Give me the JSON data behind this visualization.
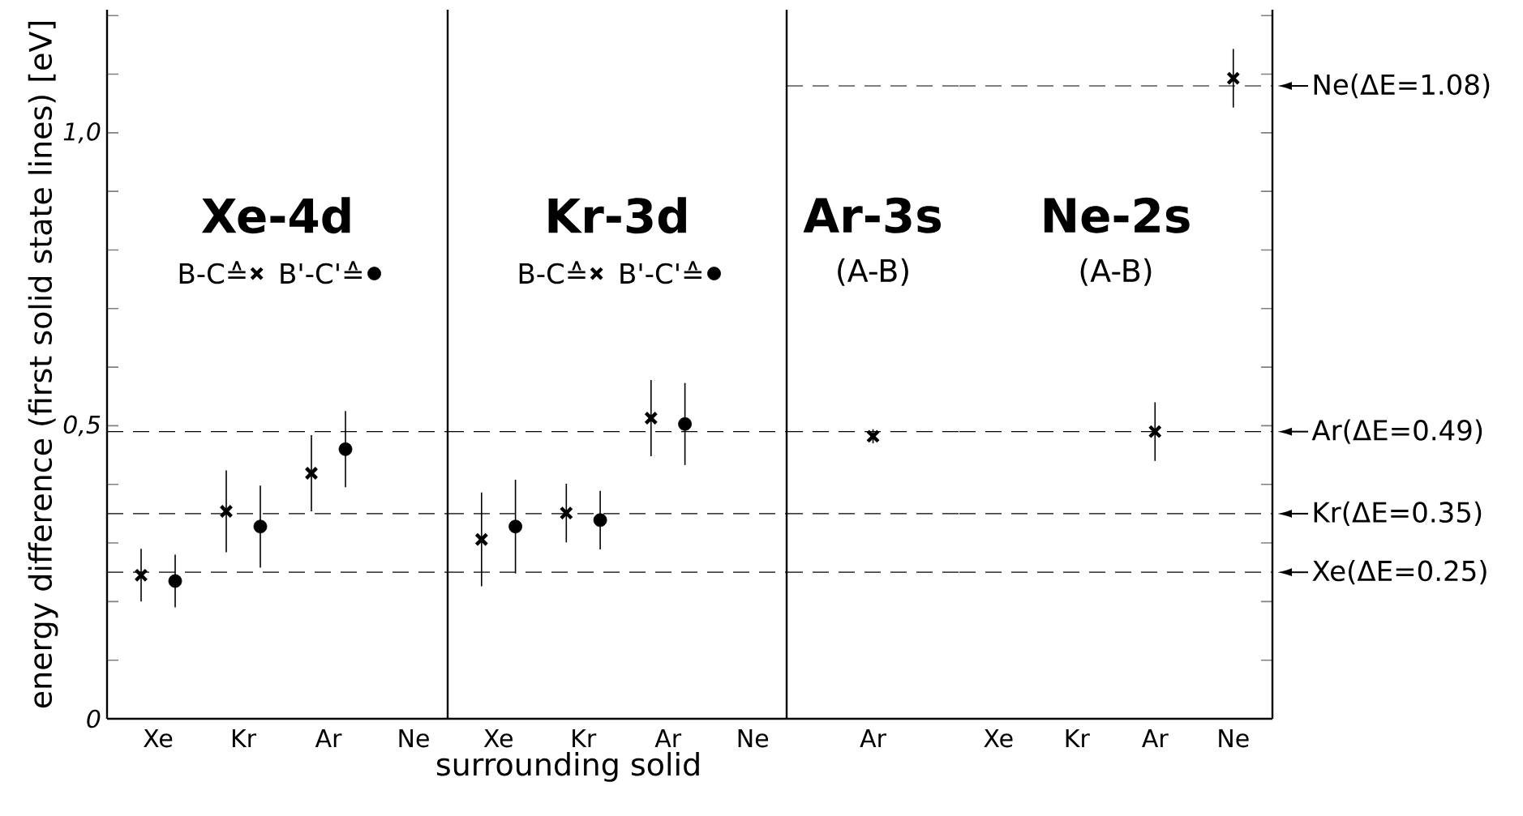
{
  "chart_data": [
    {
      "type": "scatter",
      "title": "Xe-4d",
      "ylabel": "energy difference (first solid state lines) [eV]",
      "categories": [
        "Xe",
        "Kr",
        "Ar",
        "Ne"
      ],
      "ylim": [
        0,
        1.21
      ],
      "yticks": [
        0,
        {
          "value": 0.1,
          "label": null
        },
        {
          "value": 0.2,
          "label": null
        },
        {
          "value": 0.3,
          "label": null
        },
        {
          "value": 0.4,
          "label": null
        },
        {
          "value": 0.5,
          "label": "0,5"
        },
        {
          "value": 0.6,
          "label": null
        },
        {
          "value": 0.7,
          "label": null
        },
        {
          "value": 0.8,
          "label": null
        },
        {
          "value": 0.9,
          "label": null
        },
        {
          "value": 1.0,
          "label": "1,0"
        },
        {
          "value": 1.1,
          "label": null
        },
        {
          "value": 1.2,
          "label": null
        }
      ],
      "legend": "top",
      "series": [
        {
          "name": "B-C≙",
          "color": "#000000",
          "marker": "cross",
          "values": [
            0.245,
            0.354,
            0.419,
            null
          ],
          "errors": [
            0.045,
            0.07,
            0.065,
            null
          ]
        },
        {
          "name": "B'-C'≙",
          "color": "#000000",
          "marker": "circle",
          "values": [
            0.235,
            0.328,
            0.46,
            null
          ],
          "errors": [
            0.045,
            0.07,
            0.065,
            null
          ]
        }
      ],
      "ref_lines": [
        {
          "axis": "y",
          "value": 0.25,
          "line_style": "dashed"
        },
        {
          "axis": "y",
          "value": 0.35,
          "line_style": "dashed"
        },
        {
          "axis": "y",
          "value": 0.49,
          "line_style": "dashed"
        }
      ]
    },
    {
      "type": "scatter",
      "title": "Kr-3d",
      "xlabel": "surrounding solid",
      "categories": [
        "Xe",
        "Kr",
        "Ar",
        "Ne"
      ],
      "ylim": [
        0,
        1.21
      ],
      "tick_labels": "x",
      "legend": "top",
      "series": [
        {
          "name": "B-C≙",
          "color": "#000000",
          "marker": "cross",
          "values": [
            0.306,
            0.351,
            0.513,
            null
          ],
          "errors": [
            0.08,
            0.05,
            0.065,
            null
          ]
        },
        {
          "name": "B'-C'≙",
          "color": "#000000",
          "marker": "circle",
          "values": [
            0.328,
            0.339,
            0.503,
            null
          ],
          "errors": [
            0.08,
            0.05,
            0.07,
            null
          ]
        }
      ],
      "ref_lines": [
        {
          "axis": "y",
          "value": 0.25,
          "line_style": "dashed"
        },
        {
          "axis": "y",
          "value": 0.35,
          "line_style": "dashed"
        },
        {
          "axis": "y",
          "value": 0.49,
          "line_style": "dashed"
        }
      ]
    },
    {
      "type": "scatter",
      "title": "Ar-3s",
      "subtitle": "(A-B)",
      "categories": [
        "Ar"
      ],
      "ylim": [
        0,
        1.21
      ],
      "tick_labels": "x",
      "series": [
        {
          "color": "#000000",
          "marker": "cross",
          "values": [
            0.482
          ],
          "errors": [
            0.012
          ]
        }
      ],
      "ref_lines": [
        {
          "axis": "y",
          "value": 0.25,
          "line_style": "dashed"
        },
        {
          "axis": "y",
          "value": 0.35,
          "line_style": "dashed"
        },
        {
          "axis": "y",
          "value": 0.49,
          "line_style": "dashed"
        },
        {
          "axis": "y",
          "value": 1.08,
          "line_style": "dashed"
        }
      ]
    },
    {
      "type": "scatter",
      "title": "Ne-2s",
      "subtitle": "(A-B)",
      "categories": [
        "Xe",
        "Kr",
        "Ar",
        "Ne"
      ],
      "ylim": [
        0,
        1.21
      ],
      "tick_labels": "x",
      "yticks": [
        {
          "value": 0,
          "label": null
        },
        {
          "value": 0.1,
          "label": null
        },
        {
          "value": 0.2,
          "label": null
        },
        {
          "value": 0.3,
          "label": null
        },
        {
          "value": 0.4,
          "label": null
        },
        {
          "value": 0.5,
          "label": null
        },
        {
          "value": 0.6,
          "label": null
        },
        {
          "value": 0.7,
          "label": null
        },
        {
          "value": 0.8,
          "label": null
        },
        {
          "value": 0.9,
          "label": null
        },
        {
          "value": 1.0,
          "label": null
        },
        {
          "value": 1.1,
          "label": null
        },
        {
          "value": 1.2,
          "label": null
        }
      ],
      "series": [
        {
          "color": "#000000",
          "marker": "cross",
          "values": [
            null,
            null,
            0.49,
            1.093
          ],
          "errors": [
            null,
            null,
            0.05,
            0.05
          ]
        }
      ],
      "ref_lines": [
        {
          "axis": "y",
          "value": 0.25,
          "line_style": "dashed",
          "label": "Xe(ΔE=0.25)"
        },
        {
          "axis": "y",
          "value": 0.35,
          "line_style": "dashed",
          "label": "Kr(ΔE=0.35)"
        },
        {
          "axis": "y",
          "value": 0.49,
          "line_style": "dashed",
          "label": "Ar(ΔE=0.49)"
        },
        {
          "axis": "y",
          "value": 1.08,
          "line_style": "dashed",
          "label": "Ne(ΔE=1.08)"
        }
      ]
    }
  ]
}
